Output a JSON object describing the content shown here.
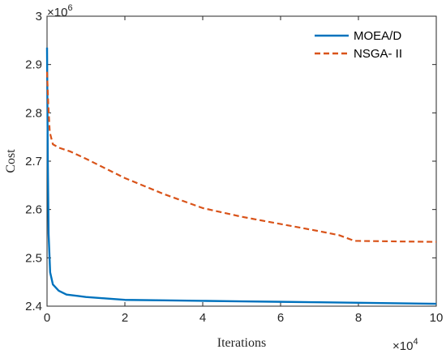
{
  "chart_data": {
    "type": "line",
    "title": "",
    "xlabel": "Iterations",
    "ylabel": "Cost",
    "xlim": [
      0,
      10
    ],
    "ylim": [
      2.4,
      3.0
    ],
    "x_multiplier": "×10",
    "x_multiplier_exp": "4",
    "y_multiplier": "×10",
    "y_multiplier_exp": "6",
    "x_ticks": [
      0,
      2,
      4,
      6,
      8,
      10
    ],
    "y_ticks": [
      2.4,
      2.5,
      2.6,
      2.7,
      2.8,
      2.9,
      3.0
    ],
    "x_tick_labels": [
      "0",
      "2",
      "4",
      "6",
      "8",
      "10"
    ],
    "y_tick_labels": [
      "2.4",
      "2.5",
      "2.6",
      "2.7",
      "2.8",
      "2.9",
      "3"
    ],
    "grid": false,
    "legend_position": "top-right",
    "series": [
      {
        "name": "MOEA/D",
        "color": "#0072BD",
        "style": "solid",
        "points": [
          [
            0,
            2.935
          ],
          [
            0.02,
            2.7
          ],
          [
            0.04,
            2.55
          ],
          [
            0.08,
            2.47
          ],
          [
            0.15,
            2.445
          ],
          [
            0.3,
            2.432
          ],
          [
            0.5,
            2.424
          ],
          [
            0.8,
            2.421
          ],
          [
            1.0,
            2.419
          ],
          [
            1.5,
            2.416
          ],
          [
            2.0,
            2.413
          ],
          [
            3.0,
            2.412
          ],
          [
            4.0,
            2.411
          ],
          [
            5.0,
            2.41
          ],
          [
            6.0,
            2.409
          ],
          [
            7.0,
            2.408
          ],
          [
            8.0,
            2.407
          ],
          [
            9.0,
            2.406
          ],
          [
            10.0,
            2.405
          ]
        ]
      },
      {
        "name": "NSGA- II",
        "color": "#D95319",
        "style": "dashed",
        "points": [
          [
            0,
            2.885
          ],
          [
            0.03,
            2.82
          ],
          [
            0.07,
            2.76
          ],
          [
            0.15,
            2.735
          ],
          [
            0.3,
            2.728
          ],
          [
            0.6,
            2.72
          ],
          [
            1.0,
            2.705
          ],
          [
            1.5,
            2.685
          ],
          [
            2.0,
            2.665
          ],
          [
            3.0,
            2.632
          ],
          [
            4.0,
            2.603
          ],
          [
            5.0,
            2.585
          ],
          [
            6.0,
            2.57
          ],
          [
            7.0,
            2.555
          ],
          [
            7.5,
            2.547
          ],
          [
            7.9,
            2.535
          ],
          [
            8.0,
            2.535
          ],
          [
            9.0,
            2.534
          ],
          [
            10.0,
            2.533
          ]
        ]
      }
    ]
  }
}
